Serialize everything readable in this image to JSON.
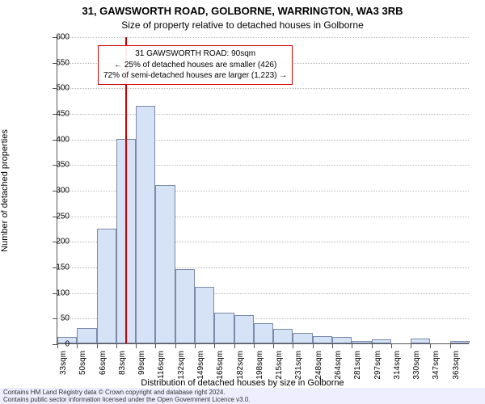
{
  "titles": {
    "line1": "31, GAWSWORTH ROAD, GOLBORNE, WARRINGTON, WA3 3RB",
    "line2": "Size of property relative to detached houses in Golborne"
  },
  "axis": {
    "ylabel": "Number of detached properties",
    "xlabel": "Distribution of detached houses by size in Golborne",
    "ylim": [
      0,
      600
    ],
    "ytick_step": 50,
    "yticks": [
      0,
      50,
      100,
      150,
      200,
      250,
      300,
      350,
      400,
      450,
      500,
      550,
      600
    ],
    "xtick_labels": [
      "33sqm",
      "50sqm",
      "66sqm",
      "83sqm",
      "99sqm",
      "116sqm",
      "132sqm",
      "149sqm",
      "165sqm",
      "182sqm",
      "198sqm",
      "215sqm",
      "231sqm",
      "248sqm",
      "264sqm",
      "281sqm",
      "297sqm",
      "314sqm",
      "330sqm",
      "347sqm",
      "363sqm"
    ],
    "grid_color": "#bbbbbb"
  },
  "chart": {
    "type": "histogram",
    "bar_fill": "#d6e2f5",
    "bar_border": "#7a8aa8",
    "values": [
      12,
      30,
      225,
      400,
      465,
      310,
      145,
      110,
      60,
      55,
      40,
      28,
      20,
      15,
      12,
      5,
      8,
      0,
      10,
      0,
      5
    ],
    "bar_width_rel": 1.0
  },
  "marker": {
    "value_sqm": 90,
    "xmin_sqm": 33,
    "xmax_sqm": 380,
    "line_color": "#d00000"
  },
  "annotation": {
    "border_color": "#d00000",
    "lines": [
      "31 GAWSWORTH ROAD: 90sqm",
      "← 25% of detached houses are smaller (426)",
      "72% of semi-detached houses are larger (1,223) →"
    ]
  },
  "footer": {
    "line1": "Contains HM Land Registry data © Crown copyright and database right 2024.",
    "line2": "Contains public sector information licensed under the Open Government Licence v3.0."
  },
  "style": {
    "title_fontsize": 13,
    "subtitle_fontsize": 12,
    "tick_fontsize": 10,
    "label_fontsize": 11,
    "annotation_fontsize": 10,
    "footer_fontsize": 8,
    "background_color": "#ffffff",
    "footer_background": "#eeeeff"
  }
}
